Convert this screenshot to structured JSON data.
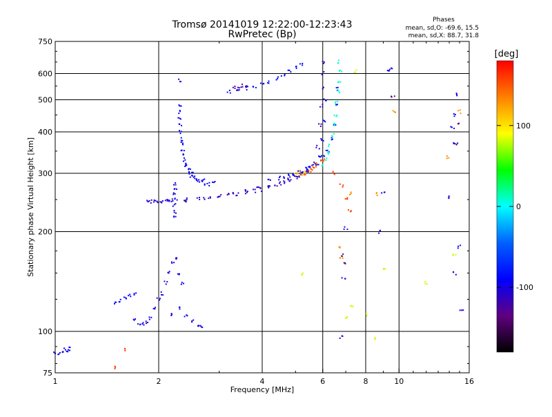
{
  "chart_data": {
    "type": "scatter",
    "title": "Tromsø 20141019 12:22:00-12:23:43",
    "subtitle": "RwPretec (Bp)",
    "xlabel": "Frequency [MHz]",
    "ylabel": "Stationary phase Virtual Height [km]",
    "x_scale": "log",
    "y_scale": "log",
    "xlim": [
      1,
      16
    ],
    "ylim": [
      75,
      750
    ],
    "x_ticks": [
      1,
      2,
      4,
      6,
      8,
      10,
      16
    ],
    "x_tick_labels": [
      "1",
      "2",
      "4",
      "6",
      "8",
      "10",
      "16"
    ],
    "y_ticks": [
      75,
      100,
      200,
      300,
      400,
      500,
      600,
      750
    ],
    "y_tick_labels": [
      "75",
      "100",
      "200",
      "300",
      "400",
      "500",
      "600",
      "750"
    ],
    "grid": true,
    "stats": {
      "header": "Phases",
      "line1": "mean, sd,O: -69.6, 15.5",
      "line2": "mean, sd,X:  88.7, 31.8"
    },
    "colorbar": {
      "label": "[deg]",
      "range": [
        -180,
        180
      ],
      "ticks": [
        100,
        0,
        -100
      ],
      "tick_labels": [
        "100",
        "0",
        "-100"
      ],
      "colors": [
        "#ff0000",
        "#ff8000",
        "#ffff00",
        "#00ff00",
        "#00ffff",
        "#0060ff",
        "#0000ff",
        "#600080",
        "#000000"
      ]
    },
    "series": [
      {
        "phase": -95,
        "points": [
          [
            1.0,
            86
          ],
          [
            1.03,
            86
          ],
          [
            1.05,
            86
          ],
          [
            1.07,
            88
          ],
          [
            1.09,
            87
          ],
          [
            1.1,
            89
          ]
        ]
      },
      {
        "phase": -90,
        "points": [
          [
            1.5,
            122
          ],
          [
            1.55,
            124
          ],
          [
            1.6,
            126
          ],
          [
            1.65,
            128
          ],
          [
            1.7,
            130
          ]
        ]
      },
      {
        "phase": -100,
        "points": [
          [
            1.7,
            108
          ],
          [
            1.75,
            106
          ],
          [
            1.8,
            105
          ],
          [
            1.85,
            107
          ],
          [
            1.9,
            110
          ],
          [
            1.95,
            118
          ],
          [
            2.0,
            125
          ],
          [
            2.05,
            130
          ],
          [
            2.1,
            140
          ],
          [
            2.15,
            150
          ],
          [
            2.2,
            160
          ],
          [
            2.25,
            165
          ],
          [
            2.3,
            150
          ],
          [
            2.35,
            140
          ],
          [
            2.2,
            112
          ],
          [
            2.3,
            118
          ],
          [
            2.4,
            112
          ],
          [
            2.5,
            108
          ],
          [
            2.6,
            105
          ],
          [
            2.65,
            103
          ]
        ]
      },
      {
        "phase": -105,
        "points": [
          [
            1.85,
            248
          ],
          [
            1.9,
            247
          ],
          [
            1.95,
            246
          ],
          [
            2.0,
            246
          ],
          [
            2.05,
            247
          ],
          [
            2.1,
            248
          ],
          [
            2.15,
            247
          ],
          [
            2.2,
            248
          ]
        ]
      },
      {
        "phase": -100,
        "points": [
          [
            2.22,
            220
          ],
          [
            2.22,
            240
          ],
          [
            2.22,
            260
          ],
          [
            2.22,
            280
          ],
          [
            2.24,
            230
          ],
          [
            2.24,
            250
          ],
          [
            2.24,
            270
          ]
        ]
      },
      {
        "phase": -90,
        "points": [
          [
            2.3,
            480
          ],
          [
            2.3,
            440
          ],
          [
            2.32,
            400
          ],
          [
            2.33,
            380
          ],
          [
            2.35,
            350
          ],
          [
            2.37,
            330
          ],
          [
            2.4,
            315
          ],
          [
            2.45,
            300
          ],
          [
            2.5,
            292
          ],
          [
            2.6,
            285
          ],
          [
            2.7,
            280
          ],
          [
            2.8,
            278
          ]
        ]
      },
      {
        "phase": -95,
        "points": [
          [
            2.3,
            460
          ],
          [
            2.32,
            420
          ],
          [
            2.35,
            370
          ],
          [
            2.38,
            340
          ],
          [
            2.42,
            320
          ],
          [
            2.45,
            310
          ],
          [
            2.5,
            300
          ],
          [
            2.55,
            292
          ],
          [
            2.6,
            288
          ],
          [
            2.7,
            285
          ],
          [
            2.9,
            282
          ]
        ]
      },
      {
        "phase": -110,
        "points": [
          [
            2.4,
            250
          ],
          [
            2.6,
            252
          ],
          [
            2.8,
            254
          ],
          [
            3.0,
            256
          ],
          [
            3.2,
            258
          ],
          [
            3.4,
            260
          ],
          [
            3.6,
            262
          ],
          [
            3.8,
            265
          ],
          [
            4.0,
            268
          ],
          [
            4.2,
            272
          ],
          [
            4.4,
            276
          ],
          [
            4.6,
            281
          ],
          [
            4.8,
            286
          ],
          [
            5.0,
            292
          ],
          [
            5.2,
            300
          ],
          [
            5.4,
            310
          ]
        ]
      },
      {
        "phase": -115,
        "points": [
          [
            2.4,
            248
          ],
          [
            2.7,
            252
          ],
          [
            3.0,
            256
          ],
          [
            3.3,
            260
          ],
          [
            3.6,
            265
          ],
          [
            3.9,
            270
          ],
          [
            4.2,
            275
          ],
          [
            4.5,
            280
          ],
          [
            4.8,
            287
          ],
          [
            5.1,
            295
          ],
          [
            5.4,
            305
          ],
          [
            5.6,
            320
          ],
          [
            5.8,
            360
          ],
          [
            5.9,
            420
          ],
          [
            5.95,
            480
          ],
          [
            6.0,
            540
          ],
          [
            6.02,
            600
          ],
          [
            6.05,
            650
          ]
        ]
      },
      {
        "phase": -95,
        "points": [
          [
            4.2,
            285
          ],
          [
            4.5,
            290
          ],
          [
            4.8,
            295
          ],
          [
            5.1,
            302
          ],
          [
            5.4,
            310
          ],
          [
            5.7,
            320
          ],
          [
            5.9,
            340
          ],
          [
            6.0,
            380
          ],
          [
            6.05,
            430
          ],
          [
            6.1,
            500
          ]
        ]
      },
      {
        "phase": -80,
        "points": [
          [
            4.6,
            290
          ],
          [
            4.9,
            296
          ],
          [
            5.2,
            302
          ],
          [
            5.5,
            312
          ],
          [
            5.8,
            322
          ],
          [
            6.0,
            335
          ],
          [
            6.2,
            350
          ],
          [
            6.4,
            380
          ],
          [
            6.5,
            420
          ],
          [
            6.6,
            480
          ],
          [
            6.65,
            540
          ]
        ]
      },
      {
        "phase": 10,
        "points": [
          [
            6.0,
            320
          ],
          [
            6.1,
            330
          ],
          [
            6.2,
            345
          ],
          [
            6.3,
            365
          ],
          [
            6.4,
            390
          ],
          [
            6.5,
            420
          ],
          [
            6.55,
            450
          ],
          [
            6.6,
            490
          ],
          [
            6.65,
            530
          ],
          [
            6.7,
            570
          ],
          [
            6.75,
            610
          ],
          [
            6.7,
            650
          ]
        ]
      },
      {
        "phase": 150,
        "points": [
          [
            5.3,
            300
          ],
          [
            5.5,
            305
          ],
          [
            5.6,
            310
          ],
          [
            5.7,
            315
          ],
          [
            5.8,
            320
          ],
          [
            5.9,
            325
          ],
          [
            6.0,
            330
          ]
        ]
      },
      {
        "phase": 120,
        "points": [
          [
            5.0,
            300
          ],
          [
            5.1,
            302
          ],
          [
            5.2,
            298
          ],
          [
            5.3,
            302
          ]
        ]
      },
      {
        "phase": -85,
        "points": [
          [
            3.2,
            530
          ],
          [
            3.4,
            535
          ],
          [
            3.6,
            540
          ],
          [
            3.8,
            548
          ],
          [
            4.0,
            555
          ],
          [
            4.2,
            565
          ],
          [
            4.4,
            580
          ],
          [
            4.6,
            595
          ],
          [
            4.8,
            610
          ],
          [
            5.0,
            625
          ],
          [
            5.2,
            640
          ]
        ]
      },
      {
        "phase": -120,
        "points": [
          [
            3.3,
            545
          ],
          [
            3.4,
            540
          ],
          [
            3.5,
            550
          ],
          [
            3.6,
            545
          ]
        ]
      },
      {
        "phase": -140,
        "points": [
          [
            9.6,
            510
          ],
          [
            15.0,
            420
          ],
          [
            14.8,
            370
          ],
          [
            6.8,
            170
          ],
          [
            6.9,
            160
          ]
        ]
      },
      {
        "phase": 130,
        "points": [
          [
            6.7,
            180
          ],
          [
            6.8,
            165
          ],
          [
            9.7,
            460
          ],
          [
            15.0,
            460
          ],
          [
            8.6,
            260
          ],
          [
            13.8,
            335
          ],
          [
            7.2,
            260
          ]
        ]
      },
      {
        "phase": 80,
        "points": [
          [
            7.0,
            110
          ],
          [
            7.3,
            120
          ],
          [
            8.0,
            112
          ],
          [
            8.6,
            95
          ],
          [
            9.0,
            155
          ],
          [
            5.2,
            150
          ],
          [
            12.0,
            140
          ],
          [
            14.5,
            170
          ],
          [
            7.5,
            610
          ]
        ]
      },
      {
        "phase": -100,
        "points": [
          [
            14.8,
            520
          ],
          [
            14.6,
            450
          ],
          [
            14.3,
            410
          ],
          [
            14.5,
            370
          ],
          [
            15.0,
            180
          ],
          [
            15.2,
            115
          ],
          [
            14.5,
            150
          ],
          [
            6.9,
            145
          ],
          [
            6.8,
            96
          ],
          [
            7.0,
            205
          ],
          [
            9.0,
            260
          ],
          [
            8.8,
            200
          ],
          [
            9.3,
            610
          ],
          [
            9.5,
            620
          ],
          [
            2.3,
            570
          ],
          [
            14.0,
            255
          ]
        ]
      },
      {
        "phase": 160,
        "points": [
          [
            6.5,
            300
          ],
          [
            6.8,
            275
          ],
          [
            7.0,
            250
          ],
          [
            7.2,
            230
          ],
          [
            1.5,
            78
          ],
          [
            1.6,
            88
          ]
        ]
      }
    ]
  }
}
